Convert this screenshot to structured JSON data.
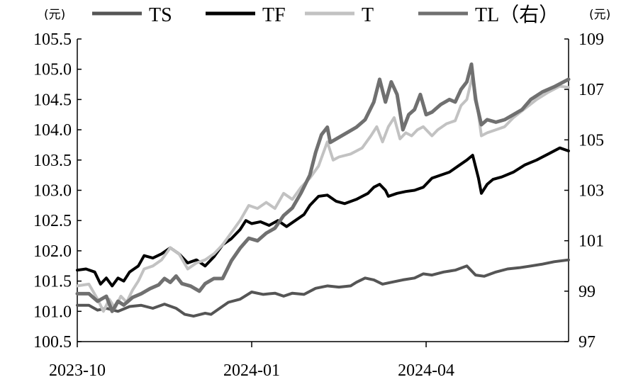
{
  "chart_data": {
    "type": "line",
    "title": "",
    "left_unit": "(元)",
    "right_unit": "(元)",
    "left_axis": {
      "ylim": [
        100.5,
        105.5
      ],
      "ticks": [
        "100.5",
        "101.0",
        "101.5",
        "102.0",
        "102.5",
        "103.0",
        "103.5",
        "104.0",
        "104.5",
        "105.0",
        "105.5"
      ]
    },
    "right_axis": {
      "ylim": [
        97,
        109
      ],
      "ticks": [
        "97",
        "99",
        "101",
        "103",
        "105",
        "107",
        "109"
      ]
    },
    "x_ticks": [
      {
        "label": "2023-10",
        "x": 0
      },
      {
        "label": "2024-01",
        "x": 3
      },
      {
        "label": "2024-04",
        "x": 6
      }
    ],
    "x_range": [
      0,
      8.45
    ],
    "grid": false,
    "legend_position": "top",
    "series": [
      {
        "name": "TS",
        "axis": "left",
        "color": "#555555",
        "width": 4,
        "points": [
          [
            0,
            101.1
          ],
          [
            0.2,
            101.1
          ],
          [
            0.35,
            101.02
          ],
          [
            0.5,
            101.05
          ],
          [
            0.7,
            101.0
          ],
          [
            0.9,
            101.08
          ],
          [
            1.1,
            101.1
          ],
          [
            1.3,
            101.05
          ],
          [
            1.5,
            101.12
          ],
          [
            1.7,
            101.05
          ],
          [
            1.85,
            100.95
          ],
          [
            2.0,
            100.92
          ],
          [
            2.2,
            100.97
          ],
          [
            2.3,
            100.95
          ],
          [
            2.45,
            101.05
          ],
          [
            2.6,
            101.15
          ],
          [
            2.8,
            101.2
          ],
          [
            3.0,
            101.32
          ],
          [
            3.2,
            101.28
          ],
          [
            3.4,
            101.3
          ],
          [
            3.55,
            101.25
          ],
          [
            3.7,
            101.3
          ],
          [
            3.9,
            101.28
          ],
          [
            4.1,
            101.38
          ],
          [
            4.3,
            101.42
          ],
          [
            4.5,
            101.4
          ],
          [
            4.7,
            101.42
          ],
          [
            4.8,
            101.48
          ],
          [
            4.95,
            101.55
          ],
          [
            5.1,
            101.52
          ],
          [
            5.25,
            101.45
          ],
          [
            5.4,
            101.48
          ],
          [
            5.6,
            101.52
          ],
          [
            5.8,
            101.55
          ],
          [
            5.95,
            101.62
          ],
          [
            6.1,
            101.6
          ],
          [
            6.3,
            101.65
          ],
          [
            6.5,
            101.68
          ],
          [
            6.7,
            101.75
          ],
          [
            6.85,
            101.6
          ],
          [
            7.0,
            101.58
          ],
          [
            7.2,
            101.65
          ],
          [
            7.4,
            101.7
          ],
          [
            7.6,
            101.72
          ],
          [
            7.8,
            101.75
          ],
          [
            8.0,
            101.78
          ],
          [
            8.2,
            101.82
          ],
          [
            8.45,
            101.85
          ]
        ]
      },
      {
        "name": "TF",
        "axis": "left",
        "color": "#000000",
        "width": 4,
        "points": [
          [
            0,
            101.68
          ],
          [
            0.15,
            101.7
          ],
          [
            0.3,
            101.65
          ],
          [
            0.4,
            101.45
          ],
          [
            0.5,
            101.55
          ],
          [
            0.6,
            101.42
          ],
          [
            0.7,
            101.55
          ],
          [
            0.8,
            101.5
          ],
          [
            0.9,
            101.65
          ],
          [
            1.05,
            101.75
          ],
          [
            1.15,
            101.92
          ],
          [
            1.3,
            101.88
          ],
          [
            1.45,
            101.95
          ],
          [
            1.6,
            102.05
          ],
          [
            1.75,
            101.95
          ],
          [
            1.9,
            101.8
          ],
          [
            2.05,
            101.85
          ],
          [
            2.2,
            101.75
          ],
          [
            2.35,
            101.9
          ],
          [
            2.5,
            102.1
          ],
          [
            2.65,
            102.2
          ],
          [
            2.8,
            102.35
          ],
          [
            2.9,
            102.5
          ],
          [
            3.0,
            102.45
          ],
          [
            3.15,
            102.48
          ],
          [
            3.3,
            102.42
          ],
          [
            3.45,
            102.5
          ],
          [
            3.6,
            102.4
          ],
          [
            3.75,
            102.5
          ],
          [
            3.9,
            102.6
          ],
          [
            4.0,
            102.75
          ],
          [
            4.15,
            102.9
          ],
          [
            4.3,
            102.92
          ],
          [
            4.45,
            102.82
          ],
          [
            4.6,
            102.78
          ],
          [
            4.8,
            102.85
          ],
          [
            5.0,
            102.95
          ],
          [
            5.1,
            103.05
          ],
          [
            5.2,
            103.1
          ],
          [
            5.3,
            103.0
          ],
          [
            5.35,
            102.9
          ],
          [
            5.5,
            102.95
          ],
          [
            5.65,
            102.98
          ],
          [
            5.8,
            103.0
          ],
          [
            5.95,
            103.05
          ],
          [
            6.1,
            103.2
          ],
          [
            6.25,
            103.25
          ],
          [
            6.4,
            103.3
          ],
          [
            6.55,
            103.4
          ],
          [
            6.7,
            103.5
          ],
          [
            6.8,
            103.58
          ],
          [
            6.9,
            103.2
          ],
          [
            6.95,
            102.95
          ],
          [
            7.05,
            103.1
          ],
          [
            7.15,
            103.18
          ],
          [
            7.3,
            103.22
          ],
          [
            7.5,
            103.3
          ],
          [
            7.7,
            103.42
          ],
          [
            7.9,
            103.5
          ],
          [
            8.1,
            103.6
          ],
          [
            8.3,
            103.7
          ],
          [
            8.45,
            103.65
          ]
        ]
      },
      {
        "name": "T",
        "axis": "left",
        "color": "#c2c2c2",
        "width": 4,
        "points": [
          [
            0,
            101.42
          ],
          [
            0.2,
            101.45
          ],
          [
            0.35,
            101.2
          ],
          [
            0.45,
            101.0
          ],
          [
            0.55,
            101.2
          ],
          [
            0.65,
            101.05
          ],
          [
            0.75,
            101.25
          ],
          [
            0.85,
            101.15
          ],
          [
            0.95,
            101.35
          ],
          [
            1.05,
            101.5
          ],
          [
            1.15,
            101.7
          ],
          [
            1.3,
            101.75
          ],
          [
            1.45,
            101.85
          ],
          [
            1.6,
            102.05
          ],
          [
            1.75,
            101.95
          ],
          [
            1.9,
            101.7
          ],
          [
            2.05,
            101.8
          ],
          [
            2.2,
            101.85
          ],
          [
            2.35,
            101.95
          ],
          [
            2.5,
            102.1
          ],
          [
            2.65,
            102.3
          ],
          [
            2.8,
            102.5
          ],
          [
            2.95,
            102.75
          ],
          [
            3.1,
            102.7
          ],
          [
            3.25,
            102.8
          ],
          [
            3.4,
            102.7
          ],
          [
            3.55,
            102.95
          ],
          [
            3.7,
            102.85
          ],
          [
            3.85,
            103.05
          ],
          [
            4.0,
            103.2
          ],
          [
            4.15,
            103.4
          ],
          [
            4.3,
            103.8
          ],
          [
            4.4,
            103.5
          ],
          [
            4.5,
            103.55
          ],
          [
            4.7,
            103.6
          ],
          [
            4.9,
            103.7
          ],
          [
            5.05,
            103.9
          ],
          [
            5.15,
            104.05
          ],
          [
            5.25,
            103.8
          ],
          [
            5.35,
            104.05
          ],
          [
            5.45,
            104.2
          ],
          [
            5.55,
            103.85
          ],
          [
            5.65,
            103.95
          ],
          [
            5.75,
            103.9
          ],
          [
            5.85,
            104.0
          ],
          [
            5.95,
            104.05
          ],
          [
            6.1,
            103.9
          ],
          [
            6.2,
            104.0
          ],
          [
            6.35,
            104.1
          ],
          [
            6.5,
            104.15
          ],
          [
            6.6,
            104.4
          ],
          [
            6.7,
            104.5
          ],
          [
            6.8,
            104.9
          ],
          [
            6.88,
            104.4
          ],
          [
            6.95,
            103.9
          ],
          [
            7.05,
            103.95
          ],
          [
            7.2,
            104.0
          ],
          [
            7.35,
            104.05
          ],
          [
            7.5,
            104.2
          ],
          [
            7.7,
            104.35
          ],
          [
            7.9,
            104.5
          ],
          [
            8.1,
            104.62
          ],
          [
            8.3,
            104.72
          ],
          [
            8.45,
            104.7
          ]
        ]
      },
      {
        "name": "TL（右）",
        "axis": "right",
        "color": "#707070",
        "width": 5,
        "points": [
          [
            0,
            98.9
          ],
          [
            0.2,
            98.9
          ],
          [
            0.35,
            98.6
          ],
          [
            0.5,
            98.8
          ],
          [
            0.6,
            98.2
          ],
          [
            0.7,
            98.6
          ],
          [
            0.8,
            98.45
          ],
          [
            0.95,
            98.75
          ],
          [
            1.1,
            98.9
          ],
          [
            1.25,
            99.1
          ],
          [
            1.4,
            99.25
          ],
          [
            1.5,
            99.5
          ],
          [
            1.6,
            99.35
          ],
          [
            1.7,
            99.6
          ],
          [
            1.8,
            99.3
          ],
          [
            1.95,
            99.2
          ],
          [
            2.1,
            99.0
          ],
          [
            2.2,
            99.3
          ],
          [
            2.35,
            99.5
          ],
          [
            2.5,
            99.5
          ],
          [
            2.65,
            100.2
          ],
          [
            2.8,
            100.7
          ],
          [
            2.95,
            101.1
          ],
          [
            3.1,
            101.0
          ],
          [
            3.25,
            101.3
          ],
          [
            3.4,
            101.5
          ],
          [
            3.55,
            102.0
          ],
          [
            3.7,
            102.3
          ],
          [
            3.85,
            102.9
          ],
          [
            4.0,
            103.6
          ],
          [
            4.1,
            104.5
          ],
          [
            4.2,
            105.2
          ],
          [
            4.3,
            105.5
          ],
          [
            4.35,
            104.9
          ],
          [
            4.5,
            105.1
          ],
          [
            4.65,
            105.3
          ],
          [
            4.8,
            105.5
          ],
          [
            4.95,
            105.8
          ],
          [
            5.1,
            106.5
          ],
          [
            5.2,
            107.4
          ],
          [
            5.3,
            106.5
          ],
          [
            5.4,
            107.3
          ],
          [
            5.5,
            106.8
          ],
          [
            5.6,
            105.4
          ],
          [
            5.7,
            106.0
          ],
          [
            5.8,
            106.2
          ],
          [
            5.9,
            106.8
          ],
          [
            6.0,
            106.0
          ],
          [
            6.1,
            106.1
          ],
          [
            6.25,
            106.4
          ],
          [
            6.4,
            106.6
          ],
          [
            6.5,
            106.5
          ],
          [
            6.6,
            107.0
          ],
          [
            6.7,
            107.3
          ],
          [
            6.78,
            108.0
          ],
          [
            6.85,
            106.6
          ],
          [
            6.95,
            105.6
          ],
          [
            7.05,
            105.8
          ],
          [
            7.2,
            105.7
          ],
          [
            7.35,
            105.8
          ],
          [
            7.5,
            106.0
          ],
          [
            7.65,
            106.2
          ],
          [
            7.8,
            106.6
          ],
          [
            8.0,
            106.9
          ],
          [
            8.2,
            107.1
          ],
          [
            8.45,
            107.4
          ]
        ]
      }
    ]
  }
}
